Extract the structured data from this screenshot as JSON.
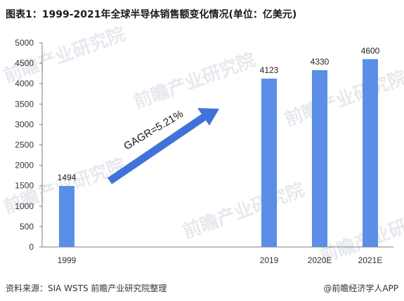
{
  "title": "图表1：1999-2021年全球半导体销售额变化情况(单位：亿美元)",
  "source": "资料来源：SIA WSTS 前瞻产业研究院整理",
  "credit": "@前瞻经济学人APP",
  "watermark": "前瞻产业研究院",
  "annotation": "GAGR=5.21%",
  "colors": {
    "bar": "#5b8ee6",
    "arrow": "#3f73d9",
    "axis": "#7f7f7f"
  },
  "chart_data": {
    "type": "bar",
    "categories": [
      "1999",
      "2019",
      "2020E",
      "2021E"
    ],
    "values": [
      1494,
      4123,
      4330,
      4600
    ],
    "ylim": [
      0,
      5000
    ],
    "yticks": [
      0,
      500,
      1000,
      1500,
      2000,
      2500,
      3000,
      3500,
      4000,
      4500,
      5000
    ],
    "grid": false,
    "legend": "none"
  }
}
